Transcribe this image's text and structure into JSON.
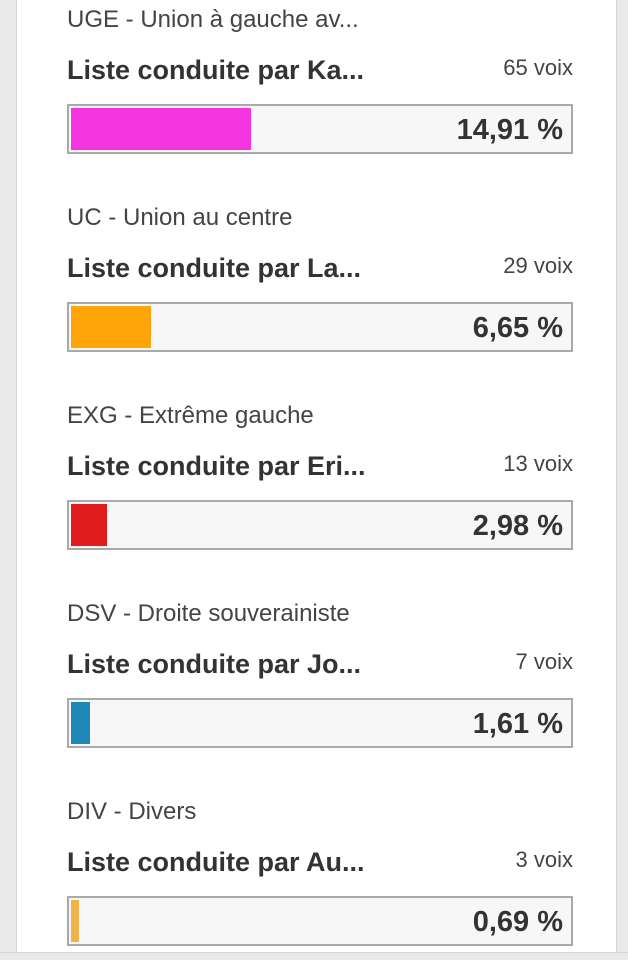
{
  "results": [
    {
      "nuance": "UGE - Union à gauche av...",
      "liste": "Liste conduite par Ka...",
      "voix": "65 voix",
      "pourcentage": "14,91 %",
      "share": 14.91,
      "color": "#f536e0"
    },
    {
      "nuance": "UC - Union au centre",
      "liste": "Liste conduite par La...",
      "voix": "29 voix",
      "pourcentage": "6,65 %",
      "share": 6.65,
      "color": "#ffa50a"
    },
    {
      "nuance": "EXG - Extrême gauche",
      "liste": "Liste conduite par Eri...",
      "voix": "13 voix",
      "pourcentage": "2,98 %",
      "share": 2.98,
      "color": "#e01c1c"
    },
    {
      "nuance": "DSV - Droite souverainiste",
      "liste": "Liste conduite par Jo...",
      "voix": "7 voix",
      "pourcentage": "1,61 %",
      "share": 1.61,
      "color": "#1f88b8"
    },
    {
      "nuance": "DIV - Divers",
      "liste": "Liste conduite par Au...",
      "voix": "3 voix",
      "pourcentage": "0,69 %",
      "share": 0.69,
      "color": "#f2b24a"
    }
  ]
}
